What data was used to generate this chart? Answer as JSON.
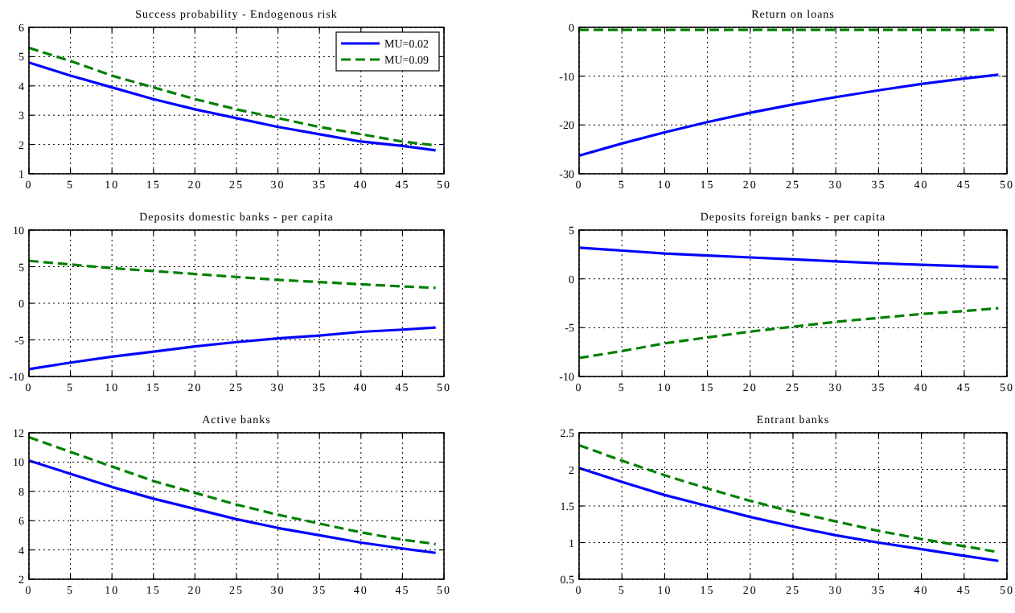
{
  "chart_data": [
    {
      "type": "line",
      "title": "Success probability - Endogenous risk",
      "x": [
        0,
        5,
        10,
        15,
        20,
        25,
        30,
        35,
        40,
        45,
        49
      ],
      "xlim": [
        0,
        50
      ],
      "xticks": [
        0,
        5,
        10,
        15,
        20,
        25,
        30,
        35,
        40,
        45,
        50
      ],
      "ylim": [
        1,
        6
      ],
      "yticks": [
        1,
        2,
        3,
        4,
        5,
        6
      ],
      "grid": true,
      "legend": "top right",
      "series": [
        {
          "name": "MU=0.02",
          "color": "#0000ff",
          "line_style": "solid",
          "values": [
            4.8,
            4.35,
            3.95,
            3.55,
            3.2,
            2.9,
            2.6,
            2.35,
            2.1,
            1.95,
            1.8
          ]
        },
        {
          "name": "MU=0.09",
          "color": "#008000",
          "line_style": "dashed",
          "values": [
            5.3,
            4.85,
            4.35,
            3.95,
            3.55,
            3.2,
            2.9,
            2.6,
            2.35,
            2.1,
            1.97
          ]
        }
      ]
    },
    {
      "type": "line",
      "title": "Return on loans",
      "x": [
        0,
        5,
        10,
        15,
        20,
        25,
        30,
        35,
        40,
        45,
        49
      ],
      "xlim": [
        0,
        50
      ],
      "xticks": [
        0,
        5,
        10,
        15,
        20,
        25,
        30,
        35,
        40,
        45,
        50
      ],
      "ylim": [
        -30,
        0
      ],
      "yticks": [
        -30,
        -20,
        -10,
        0
      ],
      "grid": true,
      "series": [
        {
          "color": "#0000ff",
          "line_style": "solid",
          "values": [
            -26.3,
            -23.8,
            -21.5,
            -19.4,
            -17.5,
            -15.8,
            -14.3,
            -12.9,
            -11.6,
            -10.5,
            -9.7
          ]
        },
        {
          "color": "#008000",
          "line_style": "dashed",
          "values": [
            -0.5,
            -0.5,
            -0.5,
            -0.5,
            -0.5,
            -0.5,
            -0.5,
            -0.5,
            -0.5,
            -0.5,
            -0.5
          ]
        }
      ]
    },
    {
      "type": "line",
      "title": "Deposits domestic banks - per capita",
      "x": [
        0,
        5,
        10,
        15,
        20,
        25,
        30,
        35,
        40,
        45,
        49
      ],
      "xlim": [
        0,
        50
      ],
      "xticks": [
        0,
        5,
        10,
        15,
        20,
        25,
        30,
        35,
        40,
        45,
        50
      ],
      "ylim": [
        -10,
        10
      ],
      "yticks": [
        -10,
        -5,
        0,
        5,
        10
      ],
      "grid": true,
      "series": [
        {
          "color": "#0000ff",
          "line_style": "solid",
          "values": [
            -9,
            -8.1,
            -7.3,
            -6.6,
            -5.9,
            -5.3,
            -4.8,
            -4.4,
            -3.9,
            -3.6,
            -3.3
          ]
        },
        {
          "color": "#008000",
          "line_style": "dashed",
          "values": [
            5.8,
            5.3,
            4.8,
            4.4,
            4.0,
            3.6,
            3.2,
            2.9,
            2.6,
            2.3,
            2.1
          ]
        }
      ]
    },
    {
      "type": "line",
      "title": "Deposits foreign banks - per capita",
      "x": [
        0,
        5,
        10,
        15,
        20,
        25,
        30,
        35,
        40,
        45,
        49
      ],
      "xlim": [
        0,
        50
      ],
      "xticks": [
        0,
        5,
        10,
        15,
        20,
        25,
        30,
        35,
        40,
        45,
        50
      ],
      "ylim": [
        -10,
        5
      ],
      "yticks": [
        -10,
        -5,
        0,
        5
      ],
      "grid": true,
      "series": [
        {
          "color": "#0000ff",
          "line_style": "solid",
          "values": [
            3.2,
            2.9,
            2.6,
            2.4,
            2.2,
            2.0,
            1.8,
            1.6,
            1.45,
            1.3,
            1.2
          ]
        },
        {
          "color": "#008000",
          "line_style": "dashed",
          "values": [
            -8.1,
            -7.4,
            -6.6,
            -6.0,
            -5.4,
            -4.9,
            -4.4,
            -4.0,
            -3.6,
            -3.3,
            -3.0
          ]
        }
      ]
    },
    {
      "type": "line",
      "title": "Active banks",
      "x": [
        0,
        5,
        10,
        15,
        20,
        25,
        30,
        35,
        40,
        45,
        49
      ],
      "xlim": [
        0,
        50
      ],
      "xticks": [
        0,
        5,
        10,
        15,
        20,
        25,
        30,
        35,
        40,
        45,
        50
      ],
      "ylim": [
        2,
        12
      ],
      "yticks": [
        2,
        4,
        6,
        8,
        10,
        12
      ],
      "grid": true,
      "series": [
        {
          "color": "#0000ff",
          "line_style": "solid",
          "values": [
            10.1,
            9.2,
            8.3,
            7.5,
            6.8,
            6.1,
            5.5,
            5.0,
            4.5,
            4.1,
            3.8
          ]
        },
        {
          "color": "#008000",
          "line_style": "dashed",
          "values": [
            11.7,
            10.7,
            9.7,
            8.7,
            7.9,
            7.1,
            6.4,
            5.8,
            5.2,
            4.7,
            4.4
          ]
        }
      ]
    },
    {
      "type": "line",
      "title": "Entrant banks",
      "x": [
        0,
        5,
        10,
        15,
        20,
        25,
        30,
        35,
        40,
        45,
        49
      ],
      "xlim": [
        0,
        50
      ],
      "xticks": [
        0,
        5,
        10,
        15,
        20,
        25,
        30,
        35,
        40,
        45,
        50
      ],
      "ylim": [
        0.5,
        2.5
      ],
      "yticks": [
        0.5,
        1,
        1.5,
        2,
        2.5
      ],
      "grid": true,
      "series": [
        {
          "color": "#0000ff",
          "line_style": "solid",
          "values": [
            2.02,
            1.83,
            1.65,
            1.5,
            1.35,
            1.22,
            1.1,
            1.0,
            0.91,
            0.82,
            0.75
          ]
        },
        {
          "color": "#008000",
          "line_style": "dashed",
          "values": [
            2.33,
            2.12,
            1.92,
            1.74,
            1.57,
            1.42,
            1.29,
            1.16,
            1.05,
            0.95,
            0.87
          ]
        }
      ]
    }
  ]
}
